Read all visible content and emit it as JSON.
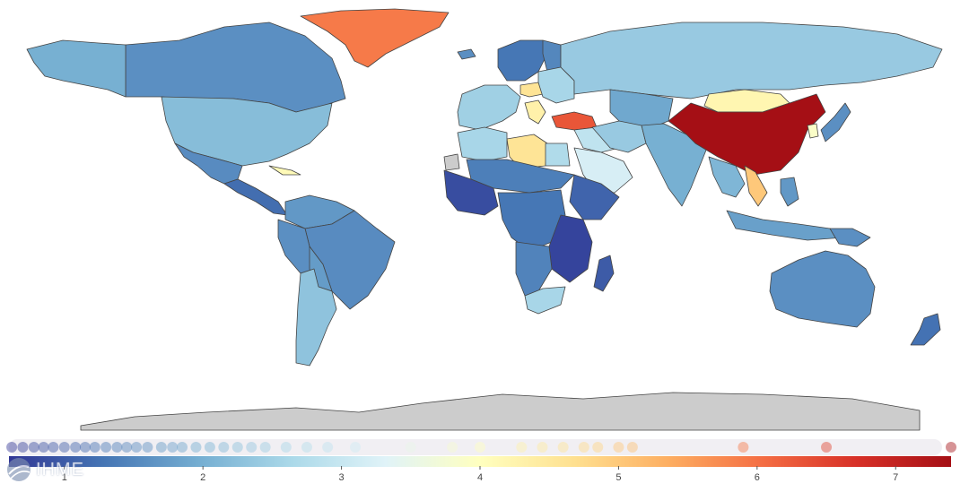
{
  "brand": {
    "logo_text": "IHME",
    "logo_icon": "globe-logo-icon"
  },
  "colors": {
    "scale": [
      "#313695",
      "#4575b4",
      "#74add1",
      "#abd9e9",
      "#e0f3f8",
      "#ffffbf",
      "#fee090",
      "#fdae61",
      "#f46d43",
      "#d73027",
      "#a50f15"
    ],
    "no_data": "#cccccc",
    "legend_strip_bg": "#f1eff3"
  },
  "chart_data": {
    "type": "choropleth",
    "scale_range": [
      0.6,
      7.4
    ],
    "tick_labels": [
      "1",
      "2",
      "3",
      "4",
      "5",
      "6",
      "7"
    ],
    "tick_values": [
      1,
      2,
      3,
      4,
      5,
      6,
      7
    ],
    "legend_dots": [
      0.62,
      0.7,
      0.78,
      0.85,
      0.92,
      1.0,
      1.08,
      1.15,
      1.22,
      1.3,
      1.38,
      1.45,
      1.52,
      1.6,
      1.7,
      1.78,
      1.85,
      1.95,
      2.05,
      2.15,
      2.25,
      2.35,
      2.45,
      2.6,
      2.75,
      2.9,
      3.1,
      3.5,
      3.8,
      4.0,
      4.3,
      4.45,
      4.6,
      4.75,
      4.85,
      5.0,
      5.1,
      5.9,
      6.5,
      7.4
    ],
    "regions": [
      {
        "name": "Greenland",
        "value": 5.9
      },
      {
        "name": "Canada",
        "value": 1.6
      },
      {
        "name": "Alaska",
        "value": 2.0
      },
      {
        "name": "United States",
        "value": 2.2
      },
      {
        "name": "Mexico",
        "value": 1.55
      },
      {
        "name": "Central America",
        "value": 1.2
      },
      {
        "name": "Caribbean",
        "value": 4.1
      },
      {
        "name": "South America North",
        "value": 1.7
      },
      {
        "name": "Brazil",
        "value": 1.55
      },
      {
        "name": "Peru",
        "value": 1.6
      },
      {
        "name": "Bolivia",
        "value": 1.75
      },
      {
        "name": "Argentina Chile",
        "value": 2.3
      },
      {
        "name": "Western Europe",
        "value": 2.5
      },
      {
        "name": "Scandinavia",
        "value": 1.3
      },
      {
        "name": "Finland",
        "value": 1.5
      },
      {
        "name": "Iceland",
        "value": 1.6
      },
      {
        "name": "Central Europe",
        "value": 4.6
      },
      {
        "name": "Balkans",
        "value": 4.3
      },
      {
        "name": "Eastern Europe",
        "value": 2.6
      },
      {
        "name": "Russia",
        "value": 2.4
      },
      {
        "name": "Turkey",
        "value": 6.3
      },
      {
        "name": "Middle East",
        "value": 2.9
      },
      {
        "name": "Arabian Peninsula",
        "value": 3.2
      },
      {
        "name": "Libya",
        "value": 4.6
      },
      {
        "name": "North Africa",
        "value": 2.6
      },
      {
        "name": "Egypt",
        "value": 2.7
      },
      {
        "name": "Sahel",
        "value": 1.4
      },
      {
        "name": "West Africa",
        "value": 0.85
      },
      {
        "name": "Central Africa",
        "value": 1.3
      },
      {
        "name": "Horn of Africa",
        "value": 1.1
      },
      {
        "name": "East Africa",
        "value": 0.75
      },
      {
        "name": "Southern Africa",
        "value": 1.45
      },
      {
        "name": "South Africa",
        "value": 2.6
      },
      {
        "name": "Madagascar",
        "value": 1.0
      },
      {
        "name": "Central Asia",
        "value": 1.9
      },
      {
        "name": "Iran",
        "value": 2.4
      },
      {
        "name": "India",
        "value": 2.0
      },
      {
        "name": "Mongolia",
        "value": 4.2
      },
      {
        "name": "China",
        "value": 7.4
      },
      {
        "name": "Southeast Asia",
        "value": 2.1
      },
      {
        "name": "Vietnam",
        "value": 5.0
      },
      {
        "name": "Japan",
        "value": 1.6
      },
      {
        "name": "Korea",
        "value": 3.9
      },
      {
        "name": "Indonesia",
        "value": 1.8
      },
      {
        "name": "Philippines",
        "value": 1.7
      },
      {
        "name": "Papua New Guinea",
        "value": 1.6
      },
      {
        "name": "Australia",
        "value": 1.6
      },
      {
        "name": "New Zealand",
        "value": 1.25
      },
      {
        "name": "Antarctica",
        "value": null
      },
      {
        "name": "Western Sahara",
        "value": null
      }
    ]
  }
}
